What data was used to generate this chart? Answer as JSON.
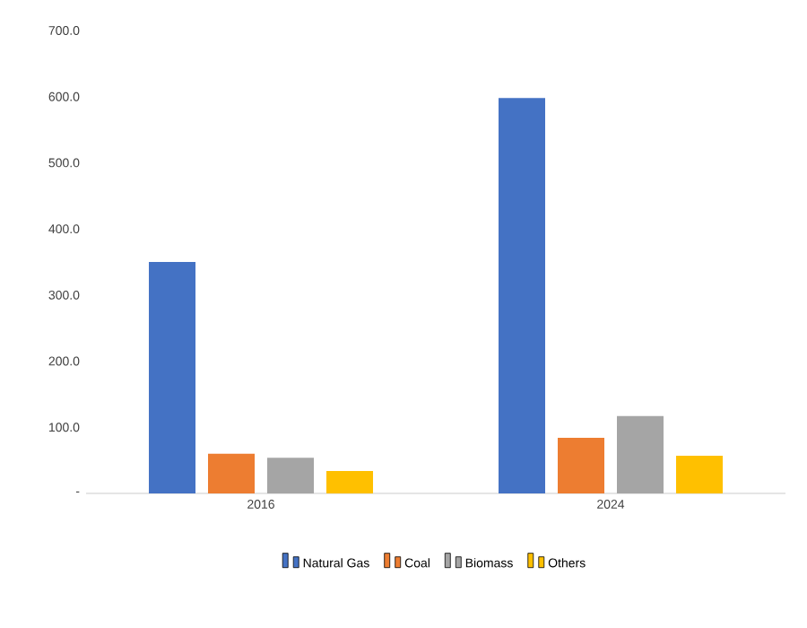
{
  "chart_data": {
    "type": "bar",
    "categories": [
      "2016",
      "2024"
    ],
    "series": [
      {
        "name": "Natural Gas",
        "color": "#4472c4",
        "values": [
          350,
          598
        ]
      },
      {
        "name": "Coal",
        "color": "#ed7d31",
        "values": [
          60,
          84
        ]
      },
      {
        "name": "Biomass",
        "color": "#a5a5a5",
        "values": [
          54,
          117
        ]
      },
      {
        "name": "Others",
        "color": "#ffc000",
        "values": [
          34,
          57
        ]
      }
    ],
    "ylim": [
      0,
      700
    ],
    "yticks": [
      {
        "value": 0,
        "label": "-"
      },
      {
        "value": 100,
        "label": "100.0"
      },
      {
        "value": 200,
        "label": "200.0"
      },
      {
        "value": 300,
        "label": "300.0"
      },
      {
        "value": 400,
        "label": "400.0"
      },
      {
        "value": 500,
        "label": "500.0"
      },
      {
        "value": 600,
        "label": "600.0"
      },
      {
        "value": 700,
        "label": "700.0"
      }
    ],
    "grid": false,
    "legend": "bottom"
  }
}
